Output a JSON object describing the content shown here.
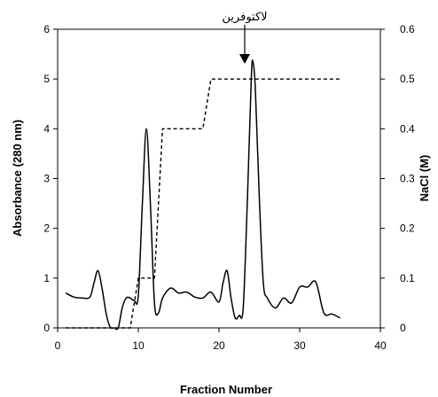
{
  "chart_data": {
    "type": "line",
    "xlabel": "Fraction Number",
    "ylabel": "Absorbance (280 nm)",
    "y2label": "NaCl (M)",
    "xlim": [
      0,
      40
    ],
    "ylim": [
      0,
      6
    ],
    "y2lim": [
      0,
      0.6
    ],
    "xticks": [
      "0",
      "10",
      "20",
      "30",
      "40"
    ],
    "yticks": [
      "0",
      "1",
      "2",
      "3",
      "4",
      "5",
      "6"
    ],
    "y2ticks": [
      "0",
      "0.1",
      "0.2",
      "0.3",
      "0.4",
      "0.5",
      "0.6"
    ],
    "grid": false,
    "annotation": {
      "text": "لاكتوفرين",
      "x": 24.2,
      "y": 5.35
    },
    "series": [
      {
        "axis": "left",
        "style": "solid",
        "color": "#000000",
        "points": [
          [
            1,
            0.7
          ],
          [
            2,
            0.62
          ],
          [
            3,
            0.6
          ],
          [
            4,
            0.62
          ],
          [
            4.5,
            0.9
          ],
          [
            5,
            1.15
          ],
          [
            5.5,
            0.8
          ],
          [
            6,
            0.3
          ],
          [
            6.5,
            0.02
          ],
          [
            7,
            0
          ],
          [
            7.5,
            0
          ],
          [
            8,
            0.4
          ],
          [
            8.5,
            0.6
          ],
          [
            9,
            0.6
          ],
          [
            9.5,
            0.55
          ],
          [
            10,
            0.65
          ],
          [
            10.5,
            2.5
          ],
          [
            11,
            4.0
          ],
          [
            11.5,
            2.5
          ],
          [
            12,
            0.5
          ],
          [
            12.5,
            0.3
          ],
          [
            13,
            0.6
          ],
          [
            14,
            0.8
          ],
          [
            15,
            0.7
          ],
          [
            16,
            0.72
          ],
          [
            17,
            0.62
          ],
          [
            18,
            0.6
          ],
          [
            19,
            0.72
          ],
          [
            20,
            0.52
          ],
          [
            20.5,
            0.9
          ],
          [
            21,
            1.15
          ],
          [
            21.5,
            0.6
          ],
          [
            22,
            0.2
          ],
          [
            22.5,
            0.25
          ],
          [
            23,
            0.4
          ],
          [
            23.5,
            2.5
          ],
          [
            24,
            5.0
          ],
          [
            24.2,
            5.35
          ],
          [
            24.5,
            4.8
          ],
          [
            25,
            2.6
          ],
          [
            25.5,
            0.9
          ],
          [
            26,
            0.6
          ],
          [
            27,
            0.4
          ],
          [
            28,
            0.6
          ],
          [
            29,
            0.5
          ],
          [
            30,
            0.82
          ],
          [
            31,
            0.82
          ],
          [
            32,
            0.92
          ],
          [
            33,
            0.3
          ],
          [
            34,
            0.28
          ],
          [
            35,
            0.2
          ]
        ]
      },
      {
        "axis": "right",
        "style": "dashed",
        "color": "#000000",
        "points": [
          [
            1,
            0
          ],
          [
            9,
            0
          ],
          [
            10,
            0.1
          ],
          [
            11,
            0.1
          ],
          [
            12,
            0.1
          ],
          [
            13,
            0.4
          ],
          [
            18,
            0.4
          ],
          [
            19,
            0.5
          ],
          [
            35,
            0.5
          ]
        ]
      }
    ]
  }
}
